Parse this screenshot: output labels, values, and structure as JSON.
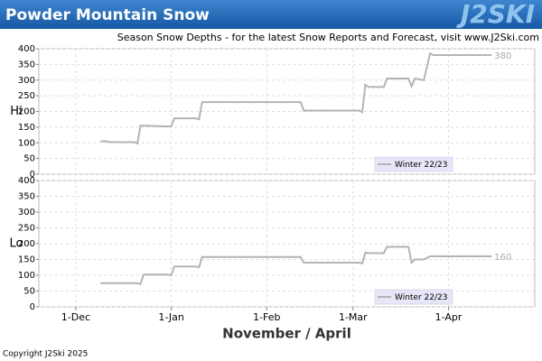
{
  "header": {
    "title": "Powder Mountain Snow",
    "logo": "J2SKI"
  },
  "subtitle": "Season Snow Depths - for the latest Snow Reports and Forecast, visit www.J2Ski.com",
  "copyright": "Copyright J2Ski 2025",
  "chart_data": [
    {
      "type": "line",
      "ylabel": "Hi",
      "end_label": "380",
      "x": [
        38,
        40,
        41,
        49,
        50,
        51,
        60,
        61,
        62,
        69,
        70,
        71,
        103,
        104,
        122,
        123,
        124,
        125,
        130,
        131,
        138,
        139,
        140,
        143,
        145,
        146,
        165
      ],
      "series": [
        {
          "name": "Winter 22/23",
          "color": "#b4b4b4",
          "values": [
            105,
            105,
            102,
            102,
            98,
            155,
            152,
            152,
            178,
            178,
            175,
            230,
            230,
            203,
            203,
            198,
            285,
            278,
            278,
            305,
            305,
            280,
            305,
            300,
            385,
            380,
            380
          ]
        }
      ],
      "xlim": [
        18,
        179
      ],
      "xticks": [
        {
          "value": 30,
          "label": "1-Dec"
        },
        {
          "value": 61,
          "label": "1-Jan"
        },
        {
          "value": 92,
          "label": "1-Feb"
        },
        {
          "value": 120,
          "label": "1-Mar"
        },
        {
          "value": 151,
          "label": "1-Apr"
        }
      ],
      "ylim": [
        0,
        400
      ],
      "yticks": [
        0,
        50,
        100,
        150,
        200,
        250,
        300,
        350,
        400
      ],
      "grid": true,
      "legend": "bottom-right"
    },
    {
      "type": "line",
      "ylabel": "Lo",
      "end_label": "160",
      "xlabel": "November / April",
      "x": [
        38,
        50,
        51,
        52,
        60,
        61,
        62,
        69,
        70,
        71,
        103,
        104,
        122,
        123,
        124,
        125,
        130,
        131,
        138,
        139,
        140,
        143,
        145,
        165
      ],
      "series": [
        {
          "name": "Winter 22/23",
          "color": "#b4b4b4",
          "values": [
            75,
            75,
            72,
            102,
            102,
            100,
            128,
            128,
            125,
            158,
            158,
            140,
            140,
            138,
            172,
            170,
            170,
            190,
            190,
            140,
            150,
            150,
            160,
            160
          ]
        }
      ],
      "xlim": [
        18,
        179
      ],
      "xticks": [
        {
          "value": 30,
          "label": "1-Dec"
        },
        {
          "value": 61,
          "label": "1-Jan"
        },
        {
          "value": 92,
          "label": "1-Feb"
        },
        {
          "value": 120,
          "label": "1-Mar"
        },
        {
          "value": 151,
          "label": "1-Apr"
        }
      ],
      "ylim": [
        0,
        400
      ],
      "yticks": [
        0,
        50,
        100,
        150,
        200,
        250,
        300,
        350,
        400
      ],
      "grid": true,
      "legend": "bottom-right"
    }
  ]
}
